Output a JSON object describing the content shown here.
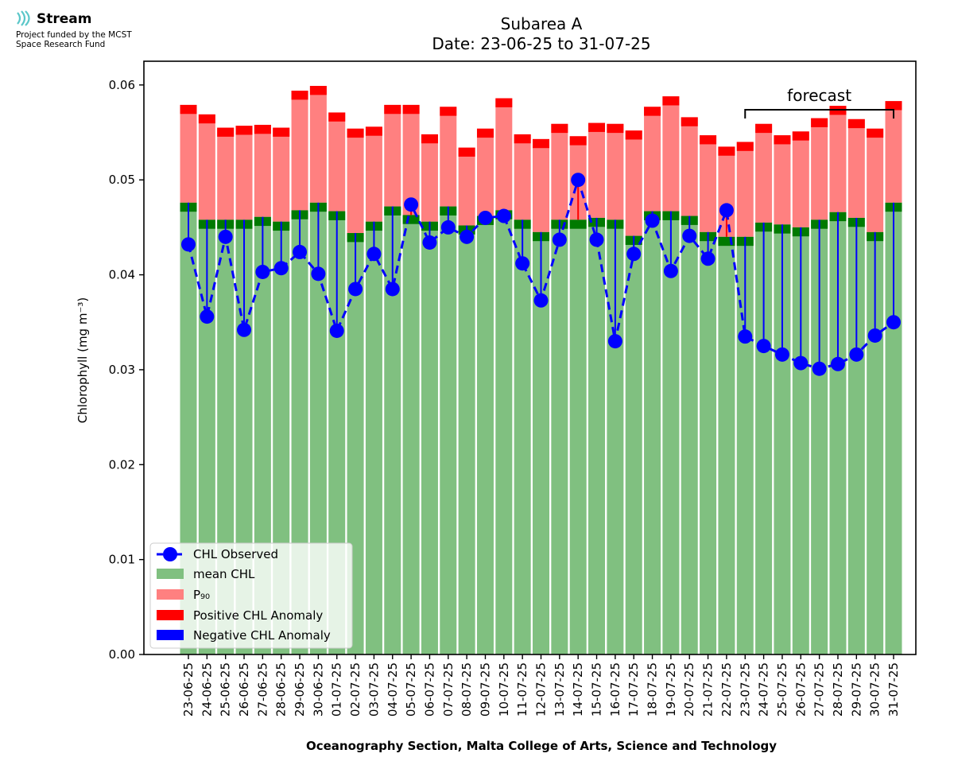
{
  "logo": {
    "name": "Stream",
    "subtitle_line1": "Project funded by the MCST",
    "subtitle_line2": "Space Research Fund"
  },
  "chart_data": {
    "type": "bar",
    "title": "Subarea A",
    "subtitle": "Date: 23-06-25 to 31-07-25",
    "xlabel": "Oceanography Section, Malta College of Arts, Science and Technology",
    "ylabel": "Chlorophyll (mg m⁻³)",
    "ylim": [
      0,
      0.0625
    ],
    "yticks": [
      "0.00",
      "0.01",
      "0.02",
      "0.03",
      "0.04",
      "0.05",
      "0.06"
    ],
    "forecast_label": "forecast",
    "forecast_range": [
      "23-07-25",
      "31-07-25"
    ],
    "categories": [
      "23-06-25",
      "24-06-25",
      "25-06-25",
      "26-06-25",
      "27-06-25",
      "28-06-25",
      "29-06-25",
      "30-06-25",
      "01-07-25",
      "02-07-25",
      "03-07-25",
      "04-07-25",
      "05-07-25",
      "06-07-25",
      "07-07-25",
      "08-07-25",
      "09-07-25",
      "10-07-25",
      "11-07-25",
      "12-07-25",
      "13-07-25",
      "14-07-25",
      "15-07-25",
      "16-07-25",
      "17-07-25",
      "18-07-25",
      "19-07-25",
      "20-07-25",
      "21-07-25",
      "22-07-25",
      "23-07-25",
      "24-07-25",
      "25-07-25",
      "26-07-25",
      "27-07-25",
      "28-07-25",
      "29-07-25",
      "30-07-25",
      "31-07-25"
    ],
    "series": [
      {
        "name": "CHL Observed",
        "color": "#0000ff",
        "values": [
          0.0432,
          0.0356,
          0.044,
          0.0342,
          0.0403,
          0.0407,
          0.0424,
          0.0401,
          0.0341,
          0.0385,
          0.0422,
          0.0385,
          0.0474,
          0.0434,
          0.045,
          0.044,
          0.046,
          0.0462,
          0.0412,
          0.0373,
          0.0437,
          0.05,
          0.0437,
          0.033,
          0.0422,
          0.0457,
          0.0404,
          0.0441,
          0.0417,
          0.0468,
          0.0335,
          0.0325,
          0.0316,
          0.0307,
          0.0301,
          0.0306,
          0.0316,
          0.0336,
          0.035
        ]
      },
      {
        "name": "mean CHL",
        "color": "#80c080",
        "values": [
          0.0476,
          0.0458,
          0.0458,
          0.0458,
          0.0461,
          0.0456,
          0.0468,
          0.0476,
          0.0467,
          0.0444,
          0.0456,
          0.0472,
          0.0463,
          0.0456,
          0.0472,
          0.0452,
          0.0462,
          0.0468,
          0.0458,
          0.0445,
          0.0458,
          0.0458,
          0.046,
          0.0458,
          0.0441,
          0.0467,
          0.0467,
          0.0462,
          0.0445,
          0.044,
          0.044,
          0.0455,
          0.0453,
          0.045,
          0.0458,
          0.0466,
          0.046,
          0.0445,
          0.0476
        ]
      },
      {
        "name": "P₉₀",
        "color": "#ff8080",
        "values": [
          0.0579,
          0.0569,
          0.0555,
          0.0557,
          0.0558,
          0.0555,
          0.0594,
          0.0599,
          0.0571,
          0.0554,
          0.0556,
          0.0579,
          0.0579,
          0.0548,
          0.0577,
          0.0534,
          0.0554,
          0.0586,
          0.0548,
          0.0543,
          0.0559,
          0.0546,
          0.056,
          0.0559,
          0.0552,
          0.0577,
          0.0588,
          0.0566,
          0.0547,
          0.0535,
          0.054,
          0.0559,
          0.0547,
          0.0551,
          0.0565,
          0.0578,
          0.0564,
          0.0554,
          0.0583
        ]
      },
      {
        "name": "Positive CHL Anomaly",
        "color": "#ff0000"
      },
      {
        "name": "Negative CHL Anomaly",
        "color": "#0000ff"
      }
    ],
    "legend_position": "lower-left",
    "grid": false,
    "colors": {
      "mean_band": "#007a00",
      "p90_band": "#ff0000",
      "mean": "#80c080",
      "p90": "#ff8080",
      "observed": "#0000ff"
    }
  }
}
